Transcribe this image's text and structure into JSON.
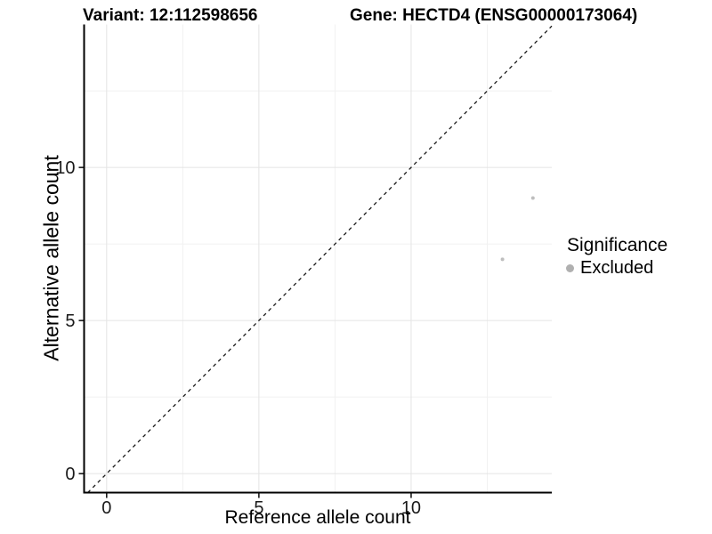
{
  "chart_data": {
    "type": "scatter",
    "title_left": "Variant: 12:112598656",
    "title_right": "Gene: HECTD4 (ENSG00000173064)",
    "xlabel": "Reference allele count",
    "ylabel": "Alternative allele count",
    "xlim": [
      -0.74,
      14.62
    ],
    "ylim": [
      -0.62,
      14.67
    ],
    "x_major_ticks": [
      0,
      5,
      10
    ],
    "y_major_ticks": [
      0,
      5,
      10
    ],
    "x_minor_ticks": [
      2.5,
      7.5,
      12.5
    ],
    "y_minor_ticks": [
      2.5,
      7.5,
      12.5
    ],
    "grid": "major+minor",
    "identity_line": {
      "equation": "y = x",
      "style": "dashed"
    },
    "series": [
      {
        "name": "Excluded",
        "point_color": "#bebebe",
        "point_radius": 2,
        "points": [
          {
            "x": 13,
            "y": 7
          },
          {
            "x": 14,
            "y": 9
          }
        ]
      }
    ],
    "legend": {
      "title": "Significance",
      "position": "right",
      "items": [
        {
          "label": "Excluded",
          "color": "#b0b0b0"
        }
      ]
    },
    "colors": {
      "grid_major": "#e4e4e4",
      "grid_minor": "#f1f1f1",
      "axis_line": "#000000",
      "tick_mark": "#1a1a1a",
      "tick_label": "#1a1a1a",
      "identity_line": "#1a1a1a",
      "background": "#ffffff"
    }
  }
}
